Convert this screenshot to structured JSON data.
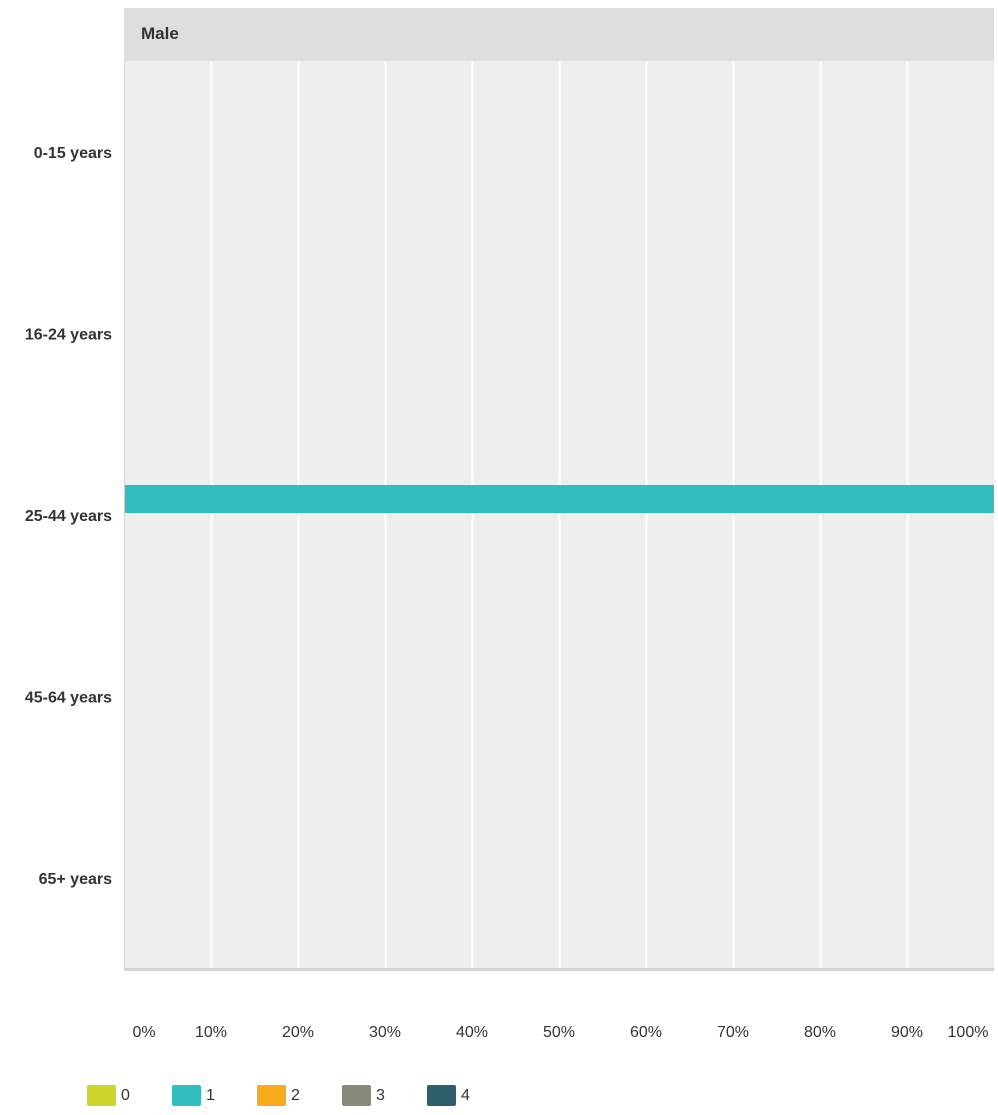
{
  "chart_data": {
    "type": "bar",
    "orientation": "horizontal",
    "panel_title": "Male",
    "categories": [
      "0-15 years",
      "16-24 years",
      "25-44 years",
      "45-64 years",
      "65+ years"
    ],
    "x_ticks": [
      "0%",
      "10%",
      "20%",
      "30%",
      "40%",
      "50%",
      "60%",
      "70%",
      "80%",
      "90%",
      "100%"
    ],
    "xlim": [
      0,
      100
    ],
    "grid": true,
    "stacked": true,
    "series": [
      {
        "name": "0",
        "color": "#cbd52a",
        "values": [
          0,
          0,
          0,
          0,
          0
        ]
      },
      {
        "name": "1",
        "color": "#33bdbd",
        "values": [
          0,
          0,
          100,
          0,
          0
        ]
      },
      {
        "name": "2",
        "color": "#f6ac1d",
        "values": [
          0,
          0,
          0,
          0,
          0
        ]
      },
      {
        "name": "3",
        "color": "#888a79",
        "values": [
          0,
          0,
          0,
          0,
          0
        ]
      },
      {
        "name": "4",
        "color": "#2b5f6b",
        "values": [
          0,
          0,
          0,
          0,
          0
        ]
      }
    ],
    "legend_position": "bottom-left"
  },
  "colors": {
    "plot_background": "#eeeeee",
    "header_background": "#dedede",
    "gridline": "#ffffff",
    "axis_line": "#d4d4d4",
    "label_text": "#333333"
  }
}
